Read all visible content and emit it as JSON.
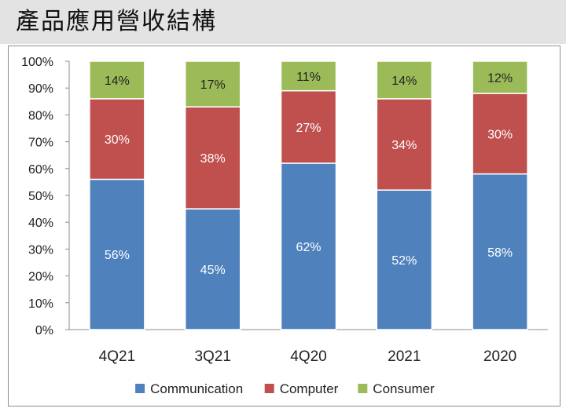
{
  "header": {
    "title": "產品應用營收結構"
  },
  "chart_data": {
    "type": "bar",
    "stacked": true,
    "title": "產品應用營收結構",
    "categories": [
      "4Q21",
      "3Q21",
      "4Q20",
      "2021",
      "2020"
    ],
    "series": [
      {
        "name": "Communication",
        "color": "#4f81bd",
        "label_color": "#ffffff",
        "values": [
          56,
          45,
          62,
          52,
          58
        ]
      },
      {
        "name": "Computer",
        "color": "#c0504d",
        "label_color": "#ffffff",
        "values": [
          30,
          38,
          27,
          34,
          30
        ]
      },
      {
        "name": "Consumer",
        "color": "#9bbb59",
        "label_color": "#222222",
        "values": [
          14,
          17,
          11,
          14,
          12
        ]
      }
    ],
    "value_suffix": "%",
    "ylim": [
      0,
      100
    ],
    "yticks": [
      "0%",
      "10%",
      "20%",
      "30%",
      "40%",
      "50%",
      "60%",
      "70%",
      "80%",
      "90%",
      "100%"
    ],
    "grid": false,
    "legend_position": "bottom"
  }
}
